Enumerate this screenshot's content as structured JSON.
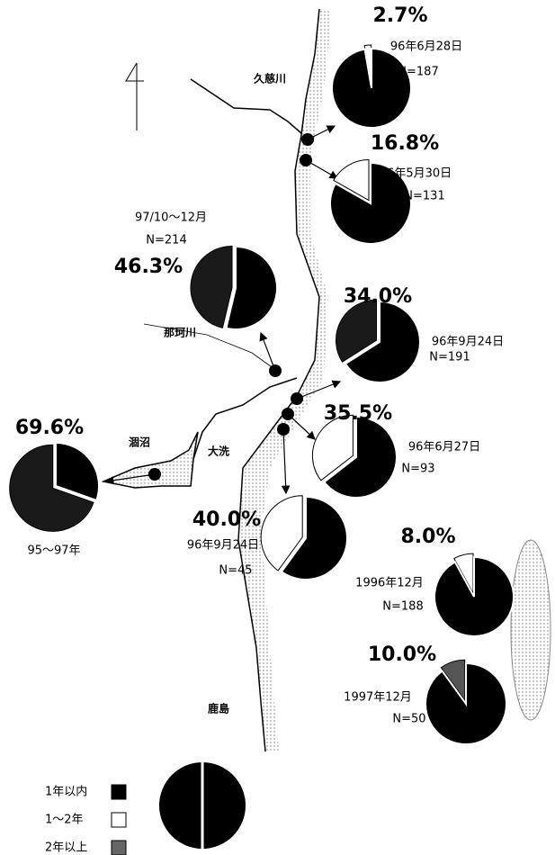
{
  "map": {
    "places": [
      "久慈川",
      "那珂川",
      "涸沼",
      "大洗",
      "鹿島"
    ],
    "pies": [
      {
        "percent": 2.7,
        "percent_label": "2.7%",
        "date": "96年6月28日",
        "n": "N=187",
        "slice_color": "#ffffff"
      },
      {
        "percent": 16.8,
        "percent_label": "16.8%",
        "date": "96年5月30日",
        "n": "N=131",
        "slice_color": "#ffffff"
      },
      {
        "percent": 46.3,
        "percent_label": "46.3%",
        "date": "97/10～12月",
        "n": "N=214",
        "slice_color": "#1a1a1a"
      },
      {
        "percent": 34.0,
        "percent_label": "34.0%",
        "date": "96年9月24日",
        "n": "N=191",
        "slice_color": "#1a1a1a"
      },
      {
        "percent": 35.5,
        "percent_label": "35.5%",
        "date": "96年6月27日",
        "n": "N=93",
        "slice_color": "#ffffff"
      },
      {
        "percent": 40.0,
        "percent_label": "40.0%",
        "date": "96年9月24日",
        "n": "N=45",
        "slice_color": "#ffffff"
      },
      {
        "percent": 8.0,
        "percent_label": "8.0%",
        "date": "1996年12月",
        "n": "N=188",
        "slice_color": "#ffffff"
      },
      {
        "percent": 10.0,
        "percent_label": "10.0%",
        "date": "1997年12月",
        "n": "N=50",
        "slice_color": "#555555"
      },
      {
        "percent": 69.6,
        "percent_label": "69.6%",
        "date": "95～97年",
        "slice_color": "#1a1a1a"
      }
    ],
    "legend": [
      {
        "label": "1年以内",
        "color": "#000000"
      },
      {
        "label": "1～2年",
        "color": "#ffffff"
      },
      {
        "label": "2年以上",
        "color": "#666666"
      }
    ]
  }
}
